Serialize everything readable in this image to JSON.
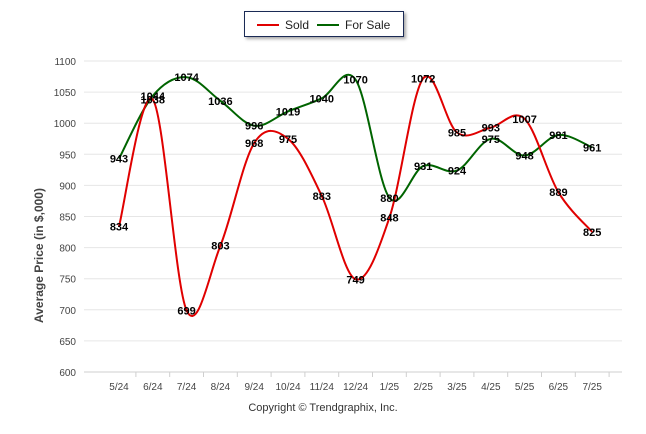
{
  "chart_data": {
    "type": "line",
    "categories": [
      "5/24",
      "6/24",
      "7/24",
      "8/24",
      "9/24",
      "10/24",
      "11/24",
      "12/24",
      "1/25",
      "2/25",
      "3/25",
      "4/25",
      "5/25",
      "6/25",
      "7/25"
    ],
    "series": [
      {
        "name": "Sold",
        "color": "#e00000",
        "values": [
          834,
          1038,
          699,
          803,
          968,
          975,
          883,
          749,
          848,
          1072,
          985,
          993,
          1007,
          889,
          825
        ]
      },
      {
        "name": "For Sale",
        "color": "#006400",
        "values": [
          943,
          1044,
          1074,
          1036,
          996,
          1019,
          1040,
          1070,
          880,
          931,
          924,
          975,
          948,
          981,
          961
        ]
      }
    ],
    "ylabel": "Average Price (in $,000)",
    "ylim": [
      600,
      1100
    ],
    "yticks": [
      600,
      650,
      700,
      750,
      800,
      850,
      900,
      950,
      1000,
      1050,
      1100
    ],
    "legend_position": "top-center",
    "grid": true
  },
  "legend": {
    "sold_label": "Sold",
    "for_sale_label": "For Sale"
  },
  "footer": {
    "copyright": "Copyright © Trendgraphix, Inc."
  }
}
